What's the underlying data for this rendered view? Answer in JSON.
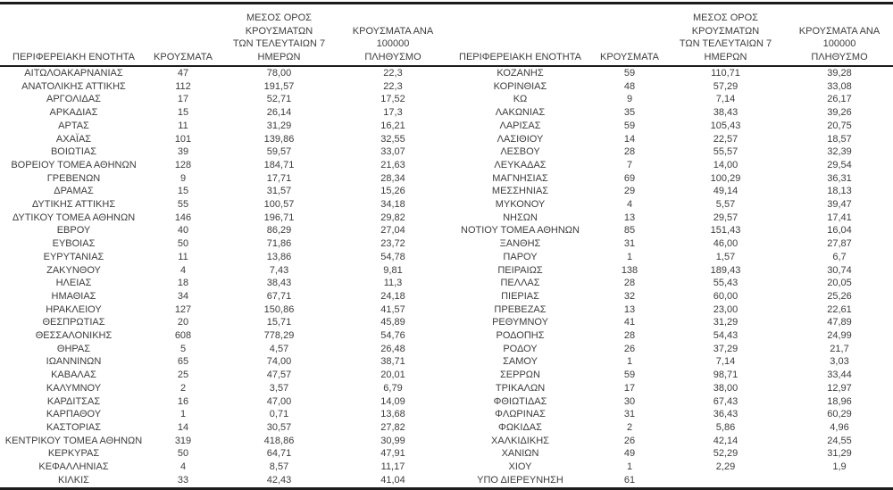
{
  "table": {
    "headers": {
      "region": "ΠΕΡΙΦΕΡΕΙΑΚΗ ΕΝΟΤΗΤΑ",
      "cases": "ΚΡΟΥΣΜΑΤΑ",
      "avg7": "ΜΕΣΟΣ ΟΡΟΣ ΚΡΟΥΣΜΑΤΩΝ\nΤΩΝ ΤΕΛΕΥΤΑΙΩΝ 7\nΗΜΕΡΩΝ",
      "per100k": "ΚΡΟΥΣΜΑΤΑ ΑΝΑ 100000\nΠΛΗΘΥΣΜΟ"
    },
    "left_rows": [
      [
        "ΑΙΤΩΛΟΑΚΑΡΝΑΝΙΑΣ",
        "47",
        "78,00",
        "22,3"
      ],
      [
        "ΑΝΑΤΟΛΙΚΗΣ ΑΤΤΙΚΗΣ",
        "112",
        "191,57",
        "22,3"
      ],
      [
        "ΑΡΓΟΛΙΔΑΣ",
        "17",
        "52,71",
        "17,52"
      ],
      [
        "ΑΡΚΑΔΙΑΣ",
        "15",
        "26,14",
        "17,3"
      ],
      [
        "ΑΡΤΑΣ",
        "11",
        "31,29",
        "16,21"
      ],
      [
        "ΑΧΑΪΑΣ",
        "101",
        "139,86",
        "32,55"
      ],
      [
        "ΒΟΙΩΤΙΑΣ",
        "39",
        "59,57",
        "33,07"
      ],
      [
        "ΒΟΡΕΙΟΥ ΤΟΜΕΑ ΑΘΗΝΩΝ",
        "128",
        "184,71",
        "21,63"
      ],
      [
        "ΓΡΕΒΕΝΩΝ",
        "9",
        "17,71",
        "28,34"
      ],
      [
        "ΔΡΑΜΑΣ",
        "15",
        "31,57",
        "15,26"
      ],
      [
        "ΔΥΤΙΚΗΣ ΑΤΤΙΚΗΣ",
        "55",
        "100,57",
        "34,18"
      ],
      [
        "ΔΥΤΙΚΟΥ ΤΟΜΕΑ ΑΘΗΝΩΝ",
        "146",
        "196,71",
        "29,82"
      ],
      [
        "ΕΒΡΟΥ",
        "40",
        "86,29",
        "27,04"
      ],
      [
        "ΕΥΒΟΙΑΣ",
        "50",
        "71,86",
        "23,72"
      ],
      [
        "ΕΥΡΥΤΑΝΙΑΣ",
        "11",
        "13,86",
        "54,78"
      ],
      [
        "ΖΑΚΥΝΘΟΥ",
        "4",
        "7,43",
        "9,81"
      ],
      [
        "ΗΛΕΙΑΣ",
        "18",
        "38,43",
        "11,3"
      ],
      [
        "ΗΜΑΘΙΑΣ",
        "34",
        "67,71",
        "24,18"
      ],
      [
        "ΗΡΑΚΛΕΙΟΥ",
        "127",
        "150,86",
        "41,57"
      ],
      [
        "ΘΕΣΠΡΩΤΙΑΣ",
        "20",
        "15,71",
        "45,89"
      ],
      [
        "ΘΕΣΣΑΛΟΝΙΚΗΣ",
        "608",
        "778,29",
        "54,76"
      ],
      [
        "ΘΗΡΑΣ",
        "5",
        "4,57",
        "26,48"
      ],
      [
        "ΙΩΑΝΝΙΝΩΝ",
        "65",
        "74,00",
        "38,71"
      ],
      [
        "ΚΑΒΑΛΑΣ",
        "25",
        "47,57",
        "20,01"
      ],
      [
        "ΚΑΛΥΜΝΟΥ",
        "2",
        "3,57",
        "6,79"
      ],
      [
        "ΚΑΡΔΙΤΣΑΣ",
        "16",
        "47,00",
        "14,09"
      ],
      [
        "ΚΑΡΠΑΘΟΥ",
        "1",
        "0,71",
        "13,68"
      ],
      [
        "ΚΑΣΤΟΡΙΑΣ",
        "14",
        "30,57",
        "27,82"
      ],
      [
        "ΚΕΝΤΡΙΚΟΥ ΤΟΜΕΑ ΑΘΗΝΩΝ",
        "319",
        "418,86",
        "30,99"
      ],
      [
        "ΚΕΡΚΥΡΑΣ",
        "50",
        "64,71",
        "47,91"
      ],
      [
        "ΚΕΦΑΛΛΗΝΙΑΣ",
        "4",
        "8,57",
        "11,17"
      ],
      [
        "ΚΙΛΚΙΣ",
        "33",
        "42,43",
        "41,04"
      ]
    ],
    "right_rows": [
      [
        "ΚΟΖΑΝΗΣ",
        "59",
        "110,71",
        "39,28"
      ],
      [
        "ΚΟΡΙΝΘΙΑΣ",
        "48",
        "57,29",
        "33,08"
      ],
      [
        "ΚΩ",
        "9",
        "7,14",
        "26,17"
      ],
      [
        "ΛΑΚΩΝΙΑΣ",
        "35",
        "38,43",
        "39,26"
      ],
      [
        "ΛΑΡΙΣΑΣ",
        "59",
        "105,43",
        "20,75"
      ],
      [
        "ΛΑΣΙΘΙΟΥ",
        "14",
        "22,57",
        "18,57"
      ],
      [
        "ΛΕΣΒΟΥ",
        "28",
        "55,57",
        "32,39"
      ],
      [
        "ΛΕΥΚΑΔΑΣ",
        "7",
        "14,00",
        "29,54"
      ],
      [
        "ΜΑΓΝΗΣΙΑΣ",
        "69",
        "100,29",
        "36,31"
      ],
      [
        "ΜΕΣΣΗΝΙΑΣ",
        "29",
        "49,14",
        "18,13"
      ],
      [
        "ΜΥΚΟΝΟΥ",
        "4",
        "5,57",
        "39,47"
      ],
      [
        "ΝΗΣΩΝ",
        "13",
        "29,57",
        "17,41"
      ],
      [
        "ΝΟΤΙΟΥ ΤΟΜΕΑ ΑΘΗΝΩΝ",
        "85",
        "151,43",
        "16,04"
      ],
      [
        "ΞΑΝΘΗΣ",
        "31",
        "46,00",
        "27,87"
      ],
      [
        "ΠΑΡΟΥ",
        "1",
        "1,57",
        "6,7"
      ],
      [
        "ΠΕΙΡΑΙΩΣ",
        "138",
        "189,43",
        "30,74"
      ],
      [
        "ΠΕΛΛΑΣ",
        "28",
        "55,43",
        "20,05"
      ],
      [
        "ΠΙΕΡΙΑΣ",
        "32",
        "60,00",
        "25,26"
      ],
      [
        "ΠΡΕΒΕΖΑΣ",
        "13",
        "23,00",
        "22,61"
      ],
      [
        "ΡΕΘΥΜΝΟΥ",
        "41",
        "31,29",
        "47,89"
      ],
      [
        "ΡΟΔΟΠΗΣ",
        "28",
        "54,43",
        "24,99"
      ],
      [
        "ΡΟΔΟΥ",
        "26",
        "37,29",
        "21,7"
      ],
      [
        "ΣΑΜΟΥ",
        "1",
        "7,14",
        "3,03"
      ],
      [
        "ΣΕΡΡΩΝ",
        "59",
        "98,71",
        "33,44"
      ],
      [
        "ΤΡΙΚΑΛΩΝ",
        "17",
        "38,00",
        "12,97"
      ],
      [
        "ΦΘΙΩΤΙΔΑΣ",
        "30",
        "67,43",
        "18,96"
      ],
      [
        "ΦΛΩΡΙΝΑΣ",
        "31",
        "36,43",
        "60,29"
      ],
      [
        "ΦΩΚΙΔΑΣ",
        "2",
        "5,86",
        "4,96"
      ],
      [
        "ΧΑΛΚΙΔΙΚΗΣ",
        "26",
        "42,14",
        "24,55"
      ],
      [
        "ΧΑΝΙΩΝ",
        "49",
        "52,29",
        "31,29"
      ],
      [
        "ΧΙΟΥ",
        "1",
        "2,29",
        "1,9"
      ],
      [
        "ΥΠΟ ΔΙΕΡΕΥΝΗΣΗ",
        "61",
        "",
        ""
      ]
    ]
  },
  "colors": {
    "text": "#3d3d3d",
    "border": "#1c1c1c",
    "background": "#ffffff"
  }
}
